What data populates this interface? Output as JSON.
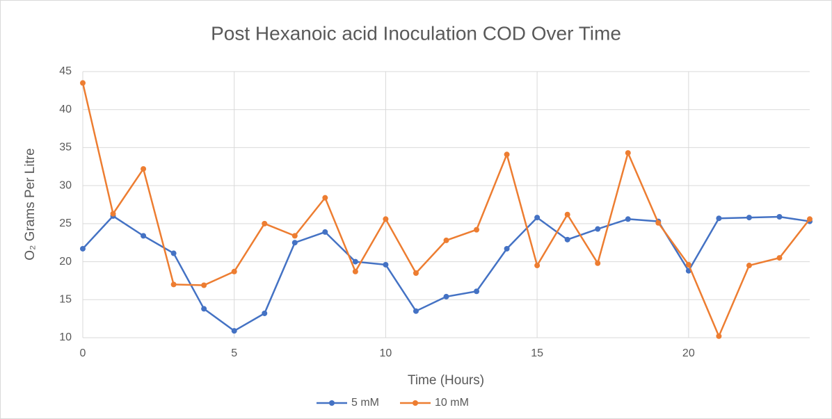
{
  "chart_data": {
    "type": "line",
    "title": "Post Hexanoic acid Inoculation COD Over Time",
    "x_label": "Time (Hours)",
    "y_label": "O₂ Grams Per Litre",
    "x": [
      0,
      1,
      2,
      3,
      4,
      5,
      6,
      7,
      8,
      9,
      10,
      11,
      12,
      13,
      14,
      15,
      16,
      17,
      18,
      19,
      20,
      21,
      22,
      23,
      24
    ],
    "series": [
      {
        "name": "5 mM",
        "color": "#4472c4",
        "values": [
          21.7,
          26.0,
          23.4,
          21.1,
          13.8,
          10.9,
          13.2,
          22.5,
          23.9,
          20.0,
          19.6,
          13.5,
          15.4,
          16.1,
          21.7,
          25.8,
          22.9,
          24.3,
          25.6,
          25.3,
          18.8,
          25.7,
          25.8,
          25.9,
          25.3
        ]
      },
      {
        "name": "10 mM",
        "color": "#ed7d31",
        "values": [
          43.5,
          26.3,
          32.2,
          17.0,
          16.9,
          18.7,
          25.0,
          23.4,
          28.4,
          18.7,
          25.6,
          18.5,
          22.8,
          24.2,
          34.1,
          19.5,
          26.2,
          19.8,
          34.3,
          25.1,
          19.6,
          10.2,
          19.5,
          20.5,
          25.6
        ]
      }
    ],
    "xlim": [
      0,
      24
    ],
    "xticks": [
      0,
      5,
      10,
      15,
      20
    ],
    "ylim": [
      10,
      45
    ],
    "yticks": [
      10,
      15,
      20,
      25,
      30,
      35,
      40,
      45
    ],
    "grid": true,
    "legend": "bottom"
  }
}
